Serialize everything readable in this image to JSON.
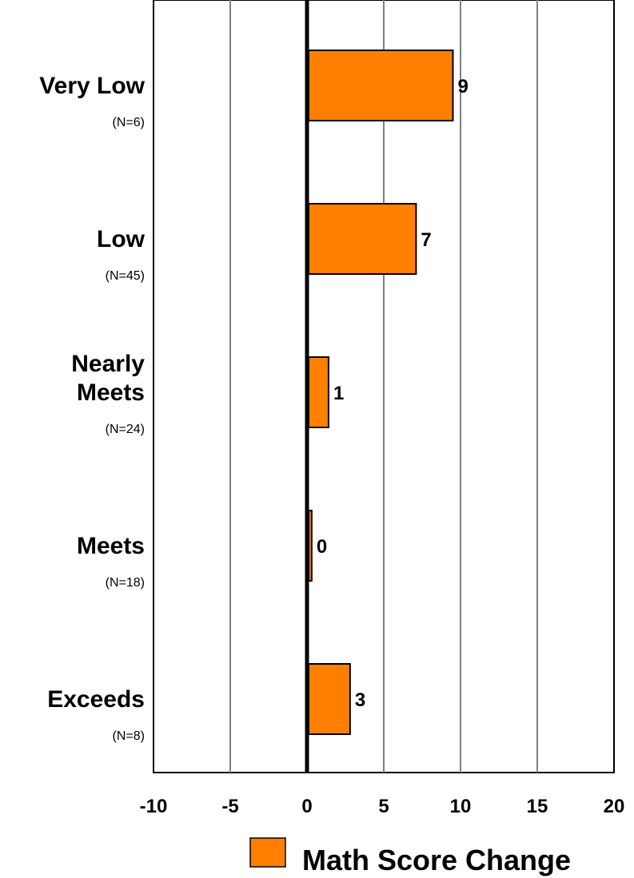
{
  "chart_data": {
    "type": "bar",
    "orientation": "horizontal",
    "categories": [
      {
        "label_lines": [
          "Very Low"
        ],
        "n": "(N=6)"
      },
      {
        "label_lines": [
          "Low"
        ],
        "n": "(N=45)"
      },
      {
        "label_lines": [
          "Nearly",
          "Meets"
        ],
        "n": "(N=24)"
      },
      {
        "label_lines": [
          "Meets"
        ],
        "n": "(N=18)"
      },
      {
        "label_lines": [
          "Exceeds"
        ],
        "n": "(N=8)"
      }
    ],
    "series": [
      {
        "name": "Math Score Change",
        "values": [
          9.4,
          7.0,
          1.3,
          0.2,
          2.7
        ],
        "data_labels": [
          "9",
          "7",
          "1",
          "0",
          "3"
        ]
      }
    ],
    "xlim": [
      -10,
      20
    ],
    "xticks": [
      "-10",
      "-5",
      "0",
      "5",
      "10",
      "15",
      "20"
    ],
    "grid": "vertical",
    "legend": "bottom-right",
    "colors": {
      "bar": "#ff8000",
      "grid": "#808080",
      "axis": "#000000"
    }
  }
}
